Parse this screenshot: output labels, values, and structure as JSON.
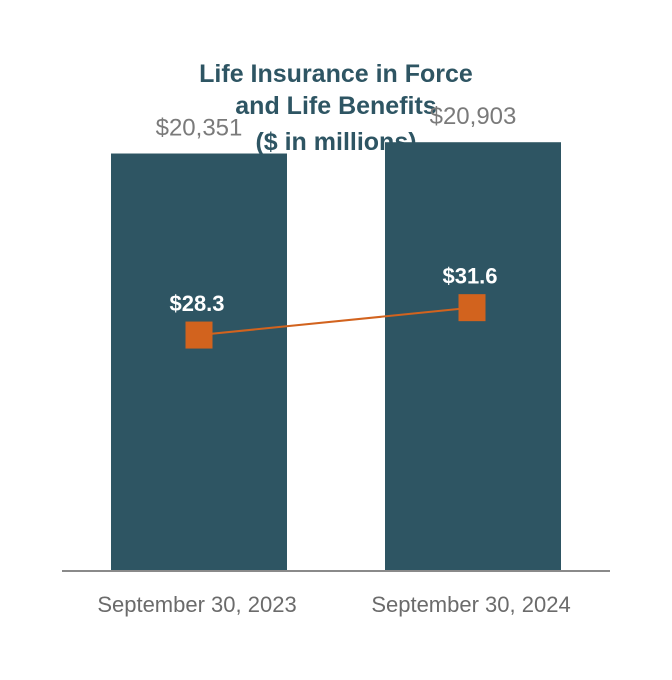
{
  "chart_data": {
    "type": "bar",
    "title_lines": [
      "Life Insurance in Force",
      "and Life Benefits",
      "($ in millions)"
    ],
    "categories": [
      "September 30, 2023",
      "September 30, 2024"
    ],
    "series": [
      {
        "type": "bar",
        "values": [
          20351,
          20903
        ],
        "labels": [
          "$20,351",
          "$20,903"
        ],
        "color": "#2e5563"
      },
      {
        "type": "line",
        "values": [
          28.3,
          31.6
        ],
        "labels": [
          "$28.3",
          "$31.6"
        ],
        "color": "#d2631e"
      }
    ],
    "colors": {
      "title": "#2e5563",
      "bar_label": "#7a7a7a",
      "point_label": "#ffffff",
      "category_label": "#6b6b6b",
      "axis": "#8a8a8a"
    },
    "bar_ylim": [
      0,
      21500
    ],
    "line_ylim": [
      0,
      53
    ],
    "grid": false,
    "legend": "none"
  }
}
